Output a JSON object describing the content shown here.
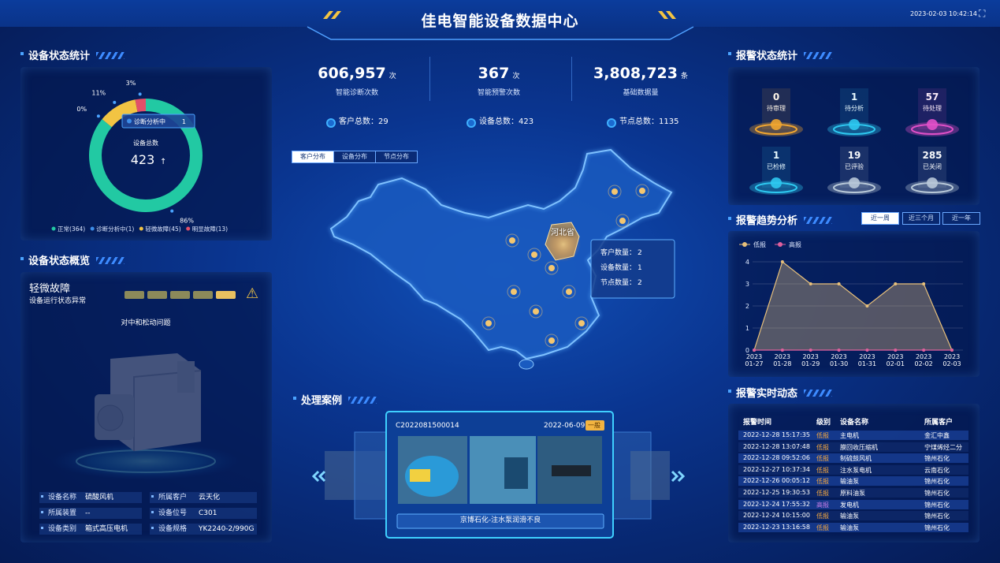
{
  "header": {
    "title": "佳电智能设备数据中心",
    "datetime": "2023-02-03 10:42:14"
  },
  "chart_data": [
    {
      "type": "pie",
      "title": "设备状态统计",
      "categories": [
        "正常(364)",
        "诊断分析中(1)",
        "轻微故障(45)",
        "明显故障(13)"
      ],
      "values": [
        86,
        0,
        11,
        3
      ],
      "value_labels": [
        "86%",
        "0%",
        "11%",
        "3%"
      ],
      "colors": [
        "#22c9a3",
        "#3d8de8",
        "#f2c443",
        "#e2506a"
      ],
      "center_label": "设备总数",
      "total": 423,
      "tooltip": {
        "label": "诊断分析中",
        "value": 1
      }
    },
    {
      "type": "area",
      "title": "报警趋势分析",
      "categories": [
        "2023\n01-27",
        "2023\n01-28",
        "2023\n01-29",
        "2023\n01-30",
        "2023\n01-31",
        "2023\n02-01",
        "2023\n02-02",
        "2023\n02-03"
      ],
      "series": [
        {
          "name": "低报",
          "color": "#e8c07a",
          "values": [
            0,
            4,
            3,
            3,
            2,
            3,
            3,
            0
          ]
        },
        {
          "name": "高报",
          "color": "#e0609e",
          "values": [
            0,
            0,
            0,
            0,
            0,
            0,
            0,
            0
          ]
        }
      ],
      "ylim": [
        0,
        4
      ],
      "yticks": [
        0,
        1,
        2,
        3,
        4
      ],
      "grid": true,
      "legend": "top-left",
      "ranges": [
        "近一周",
        "近三个月",
        "近一年"
      ]
    }
  ],
  "overview": {
    "title": "设备状态概览",
    "status": "轻微故障",
    "status_desc": "设备运行状态异常",
    "problem": "对中和松动问题",
    "info": [
      [
        "设备名称",
        "硫酸风机"
      ],
      [
        "所属客户",
        "云天化"
      ],
      [
        "所属装置",
        "--"
      ],
      [
        "设备位号",
        "C301"
      ],
      [
        "设备类别",
        "箱式高压电机"
      ],
      [
        "设备规格",
        "YK2240-2/990G"
      ]
    ]
  },
  "stats": [
    {
      "value": "606,957",
      "unit": "次",
      "label": "智能诊断次数"
    },
    {
      "value": "367",
      "unit": "次",
      "label": "智能预警次数"
    },
    {
      "value": "3,808,723",
      "unit": "条",
      "label": "基础数据量"
    }
  ],
  "totals": [
    {
      "label": "客户总数：",
      "value": 29
    },
    {
      "label": "设备总数：",
      "value": 423
    },
    {
      "label": "节点总数：",
      "value": 1135
    }
  ],
  "map": {
    "tabs": [
      "客户分布",
      "设备分布",
      "节点分布"
    ],
    "region": "河北省",
    "tooltip": [
      {
        "label": "客户数量：",
        "value": 2
      },
      {
        "label": "设备数量：",
        "value": 1
      },
      {
        "label": "节点数量：",
        "value": 2
      }
    ]
  },
  "cases": {
    "title": "处理案例",
    "code": "C2022081500014",
    "date": "2022-06-09",
    "level": "一般",
    "caption": "京博石化-注水泵润滑不良"
  },
  "alarm_status": {
    "title": "报警状态统计",
    "items": [
      {
        "value": 0,
        "label": "待审理",
        "color": "#f0a530"
      },
      {
        "value": 1,
        "label": "待分析",
        "color": "#2ec8f0"
      },
      {
        "value": 57,
        "label": "待处理",
        "color": "#e050c8"
      },
      {
        "value": 1,
        "label": "已检修",
        "color": "#2ec8f0"
      },
      {
        "value": 19,
        "label": "已评验",
        "color": "#b8c8d8"
      },
      {
        "value": 285,
        "label": "已关闭",
        "color": "#b8c8d8"
      }
    ]
  },
  "table": {
    "title": "报警实时动态",
    "headers": [
      "报警时间",
      "级别",
      "设备名称",
      "所属客户"
    ],
    "rows": [
      [
        "2022-12-28 15:17:35",
        "低报",
        "主电机",
        "金汇中鑫"
      ],
      [
        "2022-12-28 13:07:48",
        "低报",
        "膜回收压缩机",
        "宁煤烯烃二分"
      ],
      [
        "2022-12-28 09:52:06",
        "低报",
        "制硫鼓风机",
        "锦州石化"
      ],
      [
        "2022-12-27 10:37:34",
        "低报",
        "注水泵电机",
        "云南石化"
      ],
      [
        "2022-12-26 00:05:12",
        "低报",
        "输油泵",
        "锦州石化"
      ],
      [
        "2022-12-25 19:30:53",
        "低报",
        "原料油泵",
        "锦州石化"
      ],
      [
        "2022-12-24 17:55:32",
        "高报",
        "发电机",
        "锦州石化"
      ],
      [
        "2022-12-24 10:15:00",
        "低报",
        "输油泵",
        "锦州石化"
      ],
      [
        "2022-12-23 13:16:58",
        "低报",
        "输油泵",
        "锦州石化"
      ]
    ]
  }
}
